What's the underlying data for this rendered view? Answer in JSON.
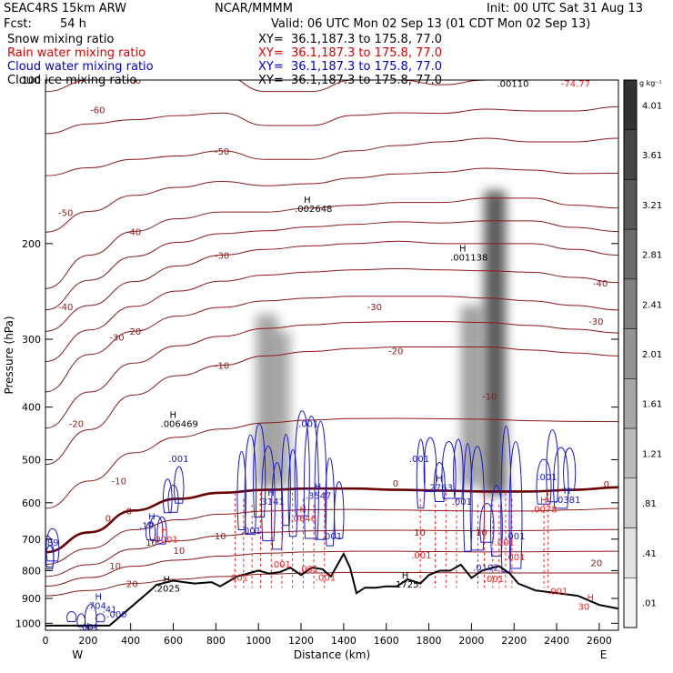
{
  "header": {
    "model": "SEAC4RS 15km ARW",
    "center": "NCAR/MMMM",
    "init": "Init: 00 UTC Sat 31 Aug 13",
    "fcst_label": "Fcst:",
    "fcst_value": "54 h",
    "valid": "Valid: 06 UTC Mon 02 Sep 13 (01 CDT Mon 02 Sep 13)"
  },
  "fields": [
    {
      "name": "Snow mixing ratio",
      "xy": "XY=  36.1,187.3 to 175.8, 77.0",
      "color": "#000000"
    },
    {
      "name": "Rain water mixing ratio",
      "xy": "XY=  36.1,187.3 to 175.8, 77.0",
      "color": "#e00000"
    },
    {
      "name": "Cloud water mixing ratio",
      "xy": "XY=  36.1,187.3 to 175.8, 77.0",
      "color": "#0000cc"
    },
    {
      "name": "Cloud ice mixing ratio",
      "xy": "XY=  36.1,187.3 to 175.8, 77.0",
      "color": "#000000"
    }
  ],
  "colors": {
    "temperature": "#8b1a1a",
    "freezing_level": "#6b0000",
    "rain": "#ff2020",
    "cloud_water": "#1a1acc",
    "terrain": "#000000"
  },
  "chart_data": {
    "type": "cross-section",
    "xlabel": "Distance (km)",
    "ylabel": "Pressure (hPa)",
    "xlim": [
      0,
      2690
    ],
    "ylim": [
      100,
      1030
    ],
    "x_ticks": [
      "0",
      "200",
      "400",
      "600",
      "800",
      "1000",
      "1200",
      "1400",
      "1600",
      "1800",
      "2000",
      "2200",
      "2400",
      "2600"
    ],
    "y_ticks": [
      "100",
      "200",
      "300",
      "400",
      "500",
      "600",
      "700",
      "800",
      "900",
      "1000"
    ],
    "endpoints": {
      "left": "W",
      "right": "E"
    },
    "colorbar": {
      "unit": "g kg⁻¹",
      "labels": [
        "4.01",
        "3.61",
        "3.21",
        "2.81",
        "2.41",
        "2.01",
        "1.61",
        "1.21",
        ".81",
        ".41",
        ".01"
      ]
    },
    "terrain": {
      "x": [
        0,
        100,
        200,
        270,
        300,
        500,
        520,
        600,
        650,
        700,
        780,
        820,
        900,
        1000,
        1050,
        1100,
        1150,
        1200,
        1250,
        1300,
        1340,
        1400,
        1430,
        1460,
        1500,
        1550,
        1600,
        1650,
        1700,
        1760,
        1800,
        1850,
        1900,
        1950,
        2000,
        2050,
        2100,
        2130,
        2180,
        2220,
        2300,
        2400,
        2500,
        2600,
        2690
      ],
      "p": [
        1010,
        1010,
        1010,
        1010,
        1010,
        865,
        850,
        835,
        840,
        845,
        840,
        855,
        820,
        800,
        810,
        805,
        790,
        815,
        790,
        795,
        820,
        745,
        790,
        880,
        860,
        860,
        855,
        855,
        830,
        845,
        815,
        800,
        800,
        780,
        825,
        800,
        790,
        785,
        810,
        845,
        870,
        880,
        890,
        925,
        940
      ]
    },
    "temperature_contours": [
      {
        "label": "-60",
        "p": [
          105,
          100,
          100,
          98,
          98,
          105,
          105,
          100,
          100,
          102,
          100,
          100,
          100,
          98
        ]
      },
      {
        "label": "-50",
        "p": [
          150,
          145,
          140,
          138,
          135,
          140,
          140,
          135,
          132,
          130,
          128,
          130,
          130,
          128
        ]
      },
      {
        "label": "-40",
        "p": [
          242,
          210,
          190,
          180,
          175,
          175,
          172,
          170,
          168,
          168,
          165,
          165,
          170,
          172
        ]
      },
      {
        "label": "-30",
        "p": [
          290,
          260,
          235,
          220,
          210,
          205,
          202,
          200,
          198,
          200,
          200,
          200,
          205,
          210
        ]
      },
      {
        "label": "-20",
        "p": [
          375,
          320,
          290,
          272,
          262,
          255,
          252,
          250,
          250,
          250,
          252,
          255,
          260,
          265
        ]
      },
      {
        "label": "-10",
        "p": [
          510,
          440,
          380,
          350,
          335,
          322,
          316,
          312,
          310,
          310,
          310,
          314,
          318,
          322
        ]
      },
      {
        "label": "0",
        "p": [
          740,
          680,
          620,
          590,
          575,
          568,
          565,
          565,
          568,
          570,
          572,
          572,
          568,
          562
        ]
      },
      {
        "label": "10",
        "p": [
          820,
          780,
          730,
          705,
          690,
          680,
          676,
          674,
          674,
          675,
          676,
          675,
          673,
          672
        ]
      },
      {
        "label": "20",
        "p": [
          890,
          870,
          845,
          830,
          820,
          812,
          808,
          806,
          806,
          807,
          808,
          808,
          808,
          808
        ]
      }
    ],
    "temperature_extra_labels": [
      {
        "text": "-60",
        "x": 210,
        "p": 115
      },
      {
        "text": "-50",
        "x": 60,
        "p": 178
      },
      {
        "text": "-40",
        "x": 60,
        "p": 265
      },
      {
        "text": "-40",
        "x": 2570,
        "p": 240
      },
      {
        "text": "-30",
        "x": 300,
        "p": 302
      },
      {
        "text": "-30",
        "x": 2550,
        "p": 282
      },
      {
        "text": "-30",
        "x": 1510,
        "p": 265
      },
      {
        "text": "-20",
        "x": 110,
        "p": 435
      },
      {
        "text": "-20",
        "x": 1610,
        "p": 320
      },
      {
        "text": "-10",
        "x": 310,
        "p": 555
      },
      {
        "text": "-10",
        "x": 2050,
        "p": 388
      },
      {
        "text": "0",
        "x": 1630,
        "p": 560
      },
      {
        "text": "0",
        "x": 2620,
        "p": 562
      },
      {
        "text": "0",
        "x": 280,
        "p": 650
      },
      {
        "text": "10",
        "x": 1730,
        "p": 690
      },
      {
        "text": "10",
        "x": 2020,
        "p": 690
      },
      {
        "text": "10",
        "x": 470,
        "p": 720
      },
      {
        "text": "10",
        "x": 600,
        "p": 745
      },
      {
        "text": "10",
        "x": 300,
        "p": 795
      },
      {
        "text": "20",
        "x": 2560,
        "p": 785
      }
    ],
    "snow_shading": [
      {
        "x": 1040,
        "p0": 270,
        "p1": 560,
        "max": 1.2
      },
      {
        "x": 1100,
        "p0": 290,
        "p1": 560,
        "max": 1.0
      },
      {
        "x": 2000,
        "p0": 260,
        "p1": 560,
        "max": 1.3
      },
      {
        "x": 2110,
        "p0": 160,
        "p1": 580,
        "max": 3.2
      }
    ],
    "maxima": [
      {
        "text": "H .002648",
        "x": 1230,
        "p": 175,
        "color": "black"
      },
      {
        "text": "H .001138",
        "x": 1960,
        "p": 215,
        "color": "black"
      },
      {
        "text": "H .006469",
        "x": 600,
        "p": 435,
        "color": "black"
      },
      {
        "text": ".001",
        "x": 1230,
        "p": 435,
        "color": "blue"
      },
      {
        "text": ".001",
        "x": 620,
        "p": 505,
        "color": "blue"
      },
      {
        "text": ".001",
        "x": 1750,
        "p": 505,
        "color": "blue"
      },
      {
        "text": ".001",
        "x": 2350,
        "p": 545,
        "color": "blue"
      },
      {
        "text": "H .2763",
        "x": 1850,
        "p": 570,
        "color": "blue"
      },
      {
        "text": "H .3141",
        "x": 1060,
        "p": 605,
        "color": "blue"
      },
      {
        "text": "H .3547",
        "x": 1280,
        "p": 590,
        "color": "blue"
      },
      {
        "text": ".001",
        "x": 1950,
        "p": 605,
        "color": "blue"
      },
      {
        "text": "H .0381",
        "x": 2450,
        "p": 600,
        "color": "blue"
      },
      {
        "text": "H .0078",
        "x": 2340,
        "p": 625,
        "color": "red"
      },
      {
        "text": "H .0646",
        "x": 1210,
        "p": 650,
        "color": "red"
      },
      {
        "text": ".001",
        "x": 960,
        "p": 685,
        "color": "blue"
      },
      {
        "text": "H .19",
        "x": 500,
        "p": 670,
        "color": "blue"
      },
      {
        "text": ".001",
        "x": 1340,
        "p": 700,
        "color": "blue"
      },
      {
        "text": ".001",
        "x": 2200,
        "p": 700,
        "color": "blue"
      },
      {
        "text": "H .0001",
        "x": 560,
        "p": 710,
        "color": "red"
      },
      {
        "text": ".789",
        "x": 10,
        "p": 720,
        "color": "blue"
      },
      {
        "text": ".001",
        "x": 2150,
        "p": 720,
        "color": "red"
      },
      {
        "text": ".001",
        "x": 1760,
        "p": 760,
        "color": "red"
      },
      {
        "text": ".001",
        "x": 2200,
        "p": 765,
        "color": "red"
      },
      {
        "text": ".001",
        "x": 1100,
        "p": 790,
        "color": "red"
      },
      {
        "text": ".001",
        "x": 1230,
        "p": 805,
        "color": "red"
      },
      {
        "text": ".0102",
        "x": 2050,
        "p": 800,
        "color": "blue"
      },
      {
        "text": ".001",
        "x": 900,
        "p": 835,
        "color": "red"
      },
      {
        "text": ".001",
        "x": 1310,
        "p": 835,
        "color": "red"
      },
      {
        "text": ".001",
        "x": 2100,
        "p": 840,
        "color": "red"
      },
      {
        "text": "H .1725",
        "x": 1690,
        "p": 860,
        "color": "black"
      },
      {
        "text": "H .2025",
        "x": 570,
        "p": 875,
        "color": "black"
      },
      {
        "text": ".001",
        "x": 2400,
        "p": 885,
        "color": "red"
      },
      {
        "text": "H .704",
        "x": 250,
        "p": 940,
        "color": "blue"
      },
      {
        "text": ".41",
        "x": 310,
        "p": 955,
        "color": "blue"
      },
      {
        "text": ".000",
        "x": 330,
        "p": 975,
        "color": "blue"
      },
      {
        "text": ".001",
        "x": 200,
        "p": 1030,
        "color": "blue"
      },
      {
        "text": "H 30",
        "x": 2560,
        "p": 945,
        "color": "red"
      }
    ],
    "top_labels": [
      {
        "text": ".00110",
        "x": 2120,
        "p": 103
      },
      {
        "text": "-74.77",
        "x": 2420,
        "p": 103
      }
    ],
    "cloud_water_regions": [
      {
        "x0": 900,
        "x1": 1150,
        "p0": 420,
        "p1": 740
      },
      {
        "x0": 1140,
        "x1": 1400,
        "p0": 400,
        "p1": 760
      },
      {
        "x0": 560,
        "x1": 640,
        "p0": 510,
        "p1": 640
      },
      {
        "x0": 480,
        "x1": 560,
        "p0": 600,
        "p1": 720
      },
      {
        "x0": 1740,
        "x1": 1960,
        "p0": 420,
        "p1": 620
      },
      {
        "x0": 1960,
        "x1": 2230,
        "p0": 430,
        "p1": 860
      },
      {
        "x0": 2320,
        "x1": 2480,
        "p0": 440,
        "p1": 620
      },
      {
        "x0": 0,
        "x1": 40,
        "p0": 660,
        "p1": 800
      },
      {
        "x0": 100,
        "x1": 280,
        "p0": 920,
        "p1": 1020
      }
    ],
    "rain_columns": [
      890,
      930,
      970,
      1010,
      1060,
      1110,
      1160,
      1210,
      1260,
      1310,
      1760,
      1830,
      1880,
      1930,
      2030,
      2060,
      2100,
      2130,
      2160,
      2190,
      2340,
      2360
    ],
    "rain_column_top": 575
  }
}
